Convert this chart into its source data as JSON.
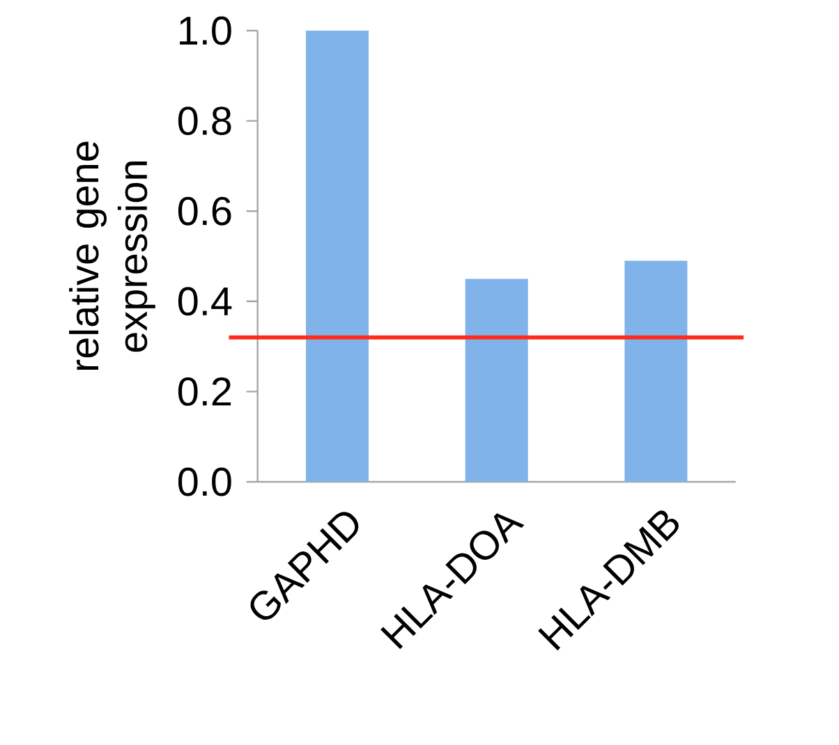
{
  "chart_data": {
    "type": "bar",
    "ylabel": "relative gene expression",
    "categories": [
      "GAPHD",
      "HLA-DOA",
      "HLA-DMB"
    ],
    "values": [
      1.0,
      0.45,
      0.49
    ],
    "color": "#7fb3ea",
    "ylim": [
      0,
      1.0
    ],
    "yticks": [
      {
        "value": 0,
        "label": "0.0"
      },
      {
        "value": 0.2,
        "label": "0.2"
      },
      {
        "value": 0.4,
        "label": "0.4"
      },
      {
        "value": 0.6,
        "label": "0.6"
      },
      {
        "value": 0.8,
        "label": "0.8"
      },
      {
        "value": 1.0,
        "label": "1.0"
      }
    ],
    "ref_lines": [
      {
        "axis": "y",
        "value": 0.32,
        "color": "#ff2a1a"
      }
    ],
    "grid": false
  }
}
